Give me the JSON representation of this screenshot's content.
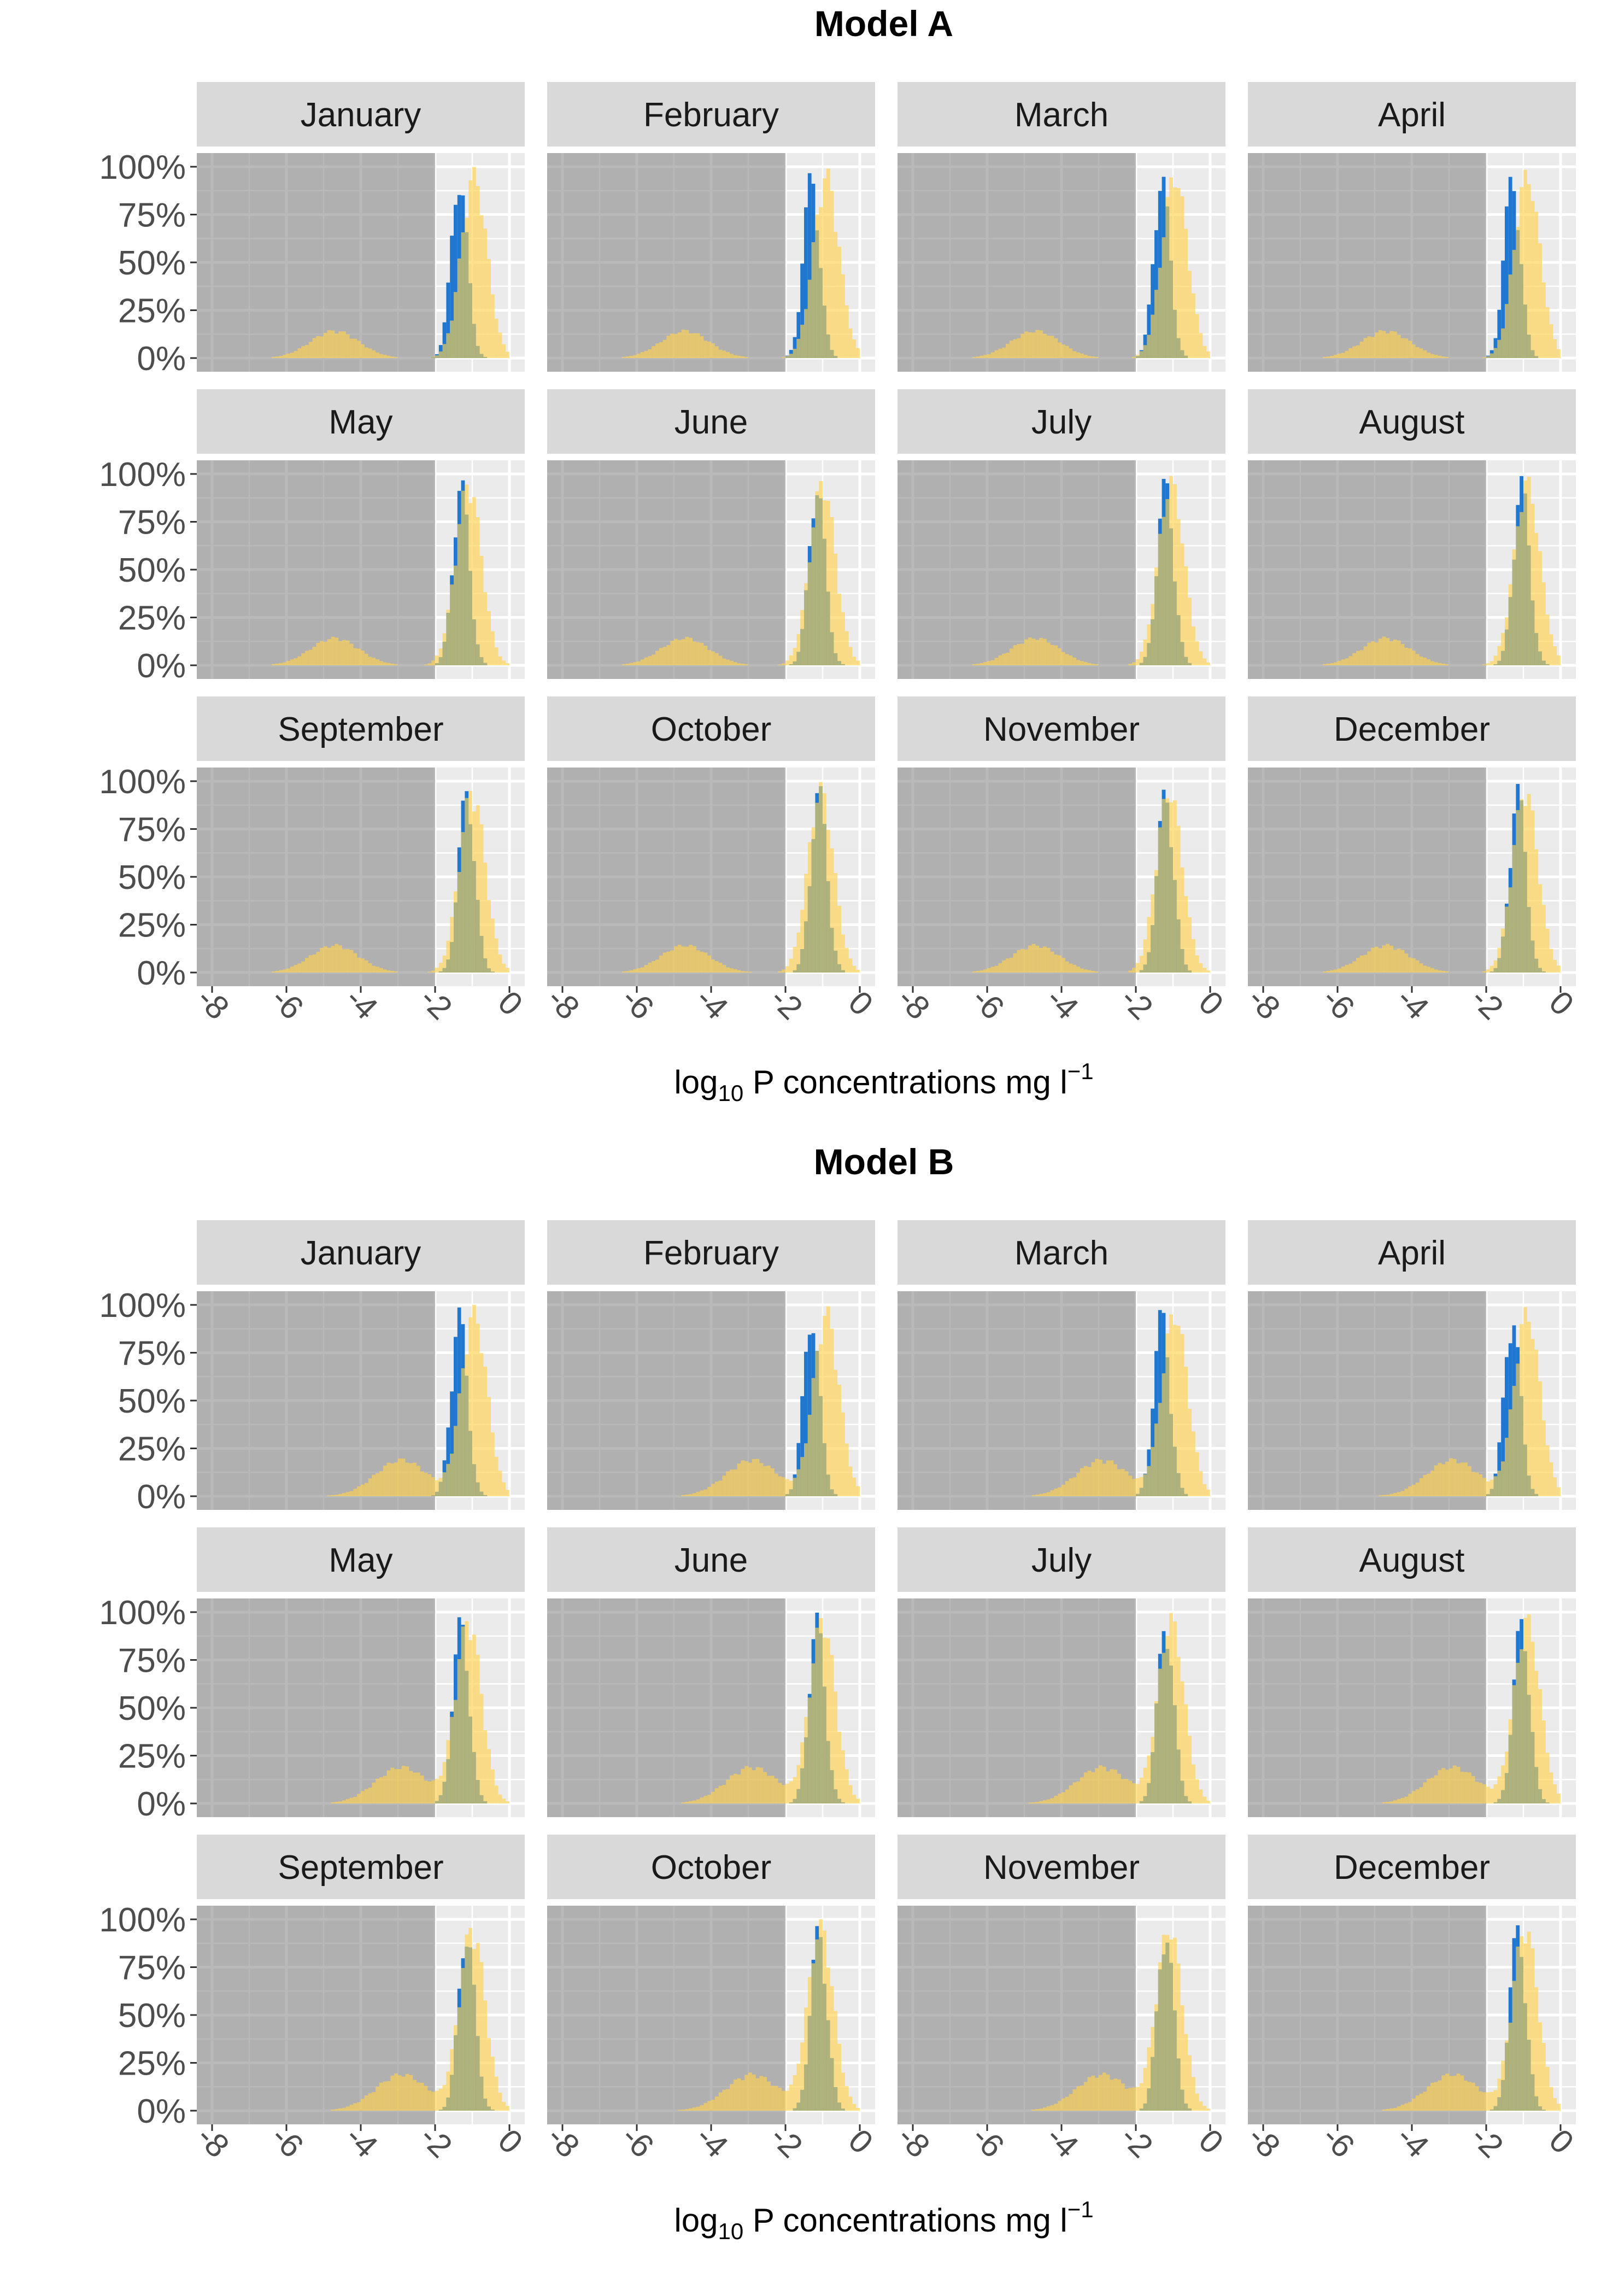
{
  "figure": {
    "y_ticks": [
      "0%",
      "25%",
      "50%",
      "75%",
      "100%"
    ],
    "x_ticks": [
      "-8",
      "-6",
      "-4",
      "-2",
      "0"
    ],
    "x_label_main": "log",
    "x_label_sub": "10",
    "x_label_rest": " P concentrations mg l",
    "x_label_sup": "−1",
    "colors": {
      "panel_bg": "#ebebeb",
      "grid": "#ffffff",
      "strip_bg": "#d9d9d9",
      "shade": "#7f7f7f",
      "blue": "#1f77d0",
      "yellow": "#ffd24d",
      "overlap": "#8f9a3a"
    }
  },
  "chart_data": [
    {
      "type": "histogram",
      "title": "Model A",
      "xlabel": "log10 P concentrations mg l-1",
      "ylabel": "",
      "xlim": [
        -8,
        0
      ],
      "ylim": [
        0,
        1
      ],
      "facets": [
        "January",
        "February",
        "March",
        "April",
        "May",
        "June",
        "July",
        "August",
        "September",
        "October",
        "November",
        "December"
      ],
      "shaded_region": [
        -8,
        -2
      ],
      "series": [
        {
          "color": "blue",
          "shape": {
            "center": -1.3,
            "sd": 0.22,
            "peak": 1.0
          },
          "month_centers": [
            -1.35,
            -1.3,
            -1.3,
            -1.3,
            -1.3,
            -1.15,
            -1.2,
            -1.05,
            -1.15,
            -1.1,
            -1.2,
            -1.15
          ]
        },
        {
          "color": "yellow",
          "low_mode": {
            "center": -4.7,
            "sd": 0.65,
            "peak": 0.15
          },
          "high_mode": {
            "center": -1.0,
            "sd": 0.35,
            "peak": 1.0
          },
          "month_centers": [
            -0.95,
            -0.9,
            -0.95,
            -0.9,
            -1.1,
            -1.0,
            -1.05,
            -0.9,
            -1.0,
            -1.05,
            -1.1,
            -0.95
          ]
        }
      ]
    },
    {
      "type": "histogram",
      "title": "Model B",
      "xlabel": "log10 P concentrations mg l-1",
      "ylabel": "",
      "xlim": [
        -8,
        0
      ],
      "ylim": [
        0,
        1
      ],
      "facets": [
        "January",
        "February",
        "March",
        "April",
        "May",
        "June",
        "July",
        "August",
        "September",
        "October",
        "November",
        "December"
      ],
      "shaded_region": [
        -8,
        -2
      ],
      "series": [
        {
          "color": "blue",
          "shape": {
            "center": -1.3,
            "sd": 0.22,
            "peak": 1.0
          },
          "month_centers": [
            -1.35,
            -1.3,
            -1.3,
            -1.3,
            -1.3,
            -1.15,
            -1.2,
            -1.05,
            -1.15,
            -1.1,
            -1.2,
            -1.15
          ]
        },
        {
          "color": "yellow",
          "low_mode": {
            "center": -2.9,
            "sd": 0.7,
            "peak": 0.2
          },
          "high_mode": {
            "center": -1.0,
            "sd": 0.35,
            "peak": 1.0
          },
          "month_centers": [
            -0.95,
            -0.9,
            -0.95,
            -0.9,
            -1.1,
            -1.0,
            -1.05,
            -0.9,
            -1.0,
            -1.05,
            -1.1,
            -0.95
          ]
        }
      ]
    }
  ]
}
